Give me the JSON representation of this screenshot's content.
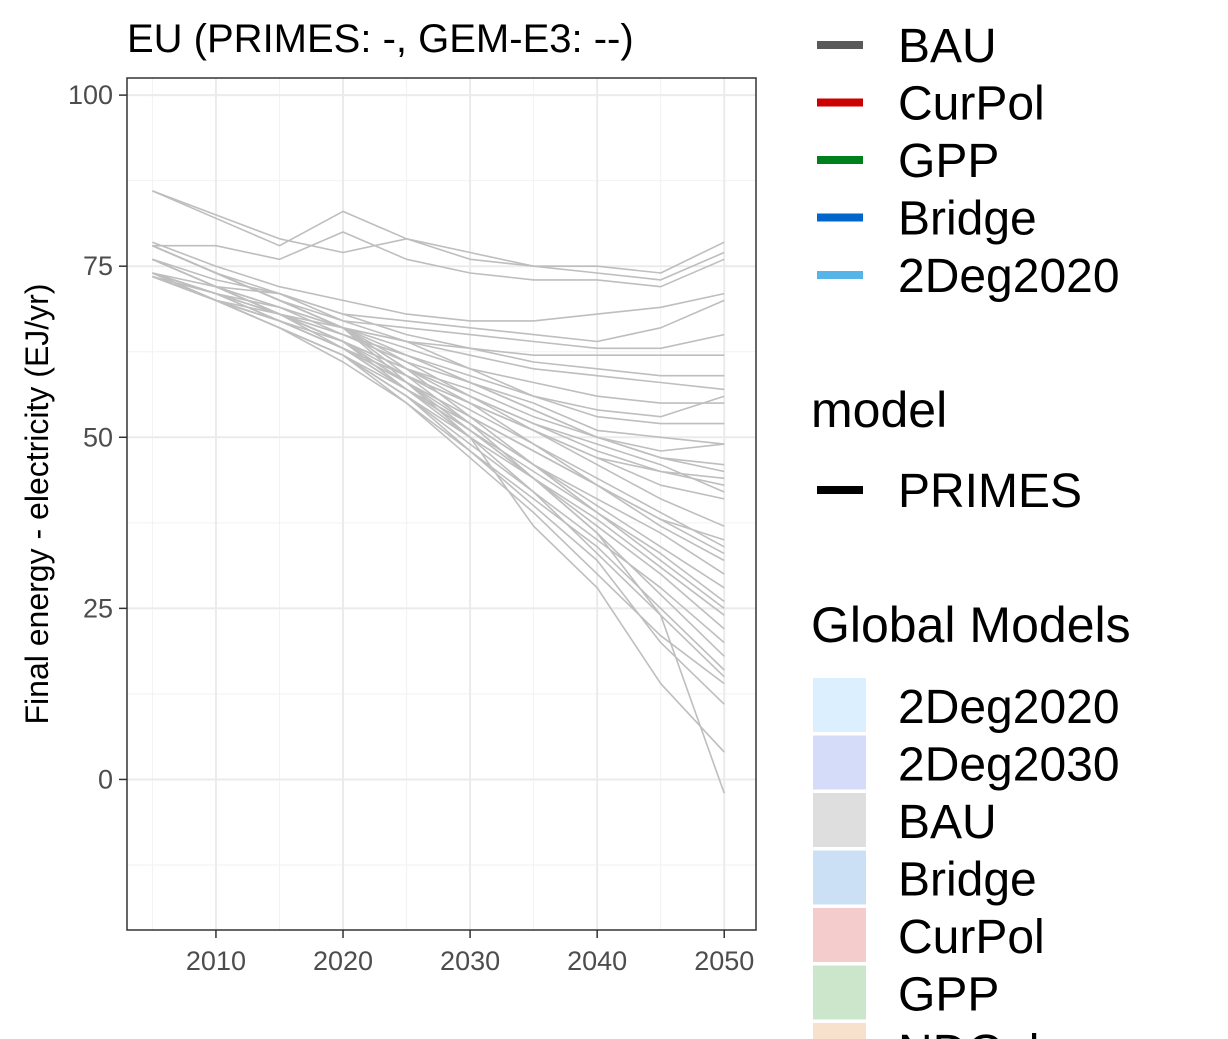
{
  "chart_data": {
    "type": "line",
    "title": "EU (PRIMES: -, GEM-E3: --)",
    "xlabel": "",
    "ylabel": "Final energy - electricity (EJ/yr)",
    "xlim": [
      2003,
      2052.5
    ],
    "ylim": [
      -22,
      102.5
    ],
    "x_ticks": [
      2010,
      2020,
      2030,
      2040,
      2050
    ],
    "y_ticks": [
      0,
      25,
      50,
      75,
      100
    ],
    "grid": true,
    "line_color": "#bebebe",
    "x": [
      2005,
      2010,
      2015,
      2020,
      2025,
      2030,
      2035,
      2040,
      2045,
      2050
    ],
    "series": [
      {
        "values": [
          86,
          82.5,
          79,
          77,
          79,
          76,
          75,
          75,
          74,
          78.5
        ]
      },
      {
        "values": [
          86,
          82,
          78,
          83,
          79,
          77,
          75,
          74,
          73,
          77
        ]
      },
      {
        "values": [
          78,
          78,
          76,
          80,
          76,
          74,
          73,
          73,
          72,
          76
        ]
      },
      {
        "values": [
          78.5,
          75,
          72,
          70,
          68,
          67,
          67,
          68,
          69,
          71
        ]
      },
      {
        "values": [
          76,
          73,
          71,
          68,
          67,
          66,
          65,
          64,
          66,
          70
        ]
      },
      {
        "values": [
          74,
          72,
          71,
          67,
          66,
          65,
          64,
          63,
          63,
          65
        ]
      },
      {
        "values": [
          73.5,
          71,
          68,
          66,
          64,
          63,
          62,
          62,
          62,
          62
        ]
      },
      {
        "values": [
          78,
          74,
          71,
          68,
          65,
          63,
          61,
          60,
          59,
          59
        ]
      },
      {
        "values": [
          74,
          71,
          69,
          66,
          64,
          62,
          60,
          59,
          58,
          57
        ]
      },
      {
        "values": [
          76,
          72,
          69,
          66,
          63,
          60,
          58,
          56,
          55,
          55
        ]
      },
      {
        "values": [
          73.5,
          70,
          68,
          65,
          62,
          59,
          56,
          54,
          53,
          56
        ]
      },
      {
        "values": [
          78,
          74,
          70,
          67,
          64,
          60,
          56,
          53,
          52,
          52
        ]
      },
      {
        "values": [
          74,
          71,
          68,
          65,
          61,
          58,
          55,
          51,
          50,
          49
        ]
      },
      {
        "values": [
          73.5,
          70,
          67,
          64,
          60,
          57,
          53,
          50,
          48,
          49
        ]
      },
      {
        "values": [
          76,
          72,
          69,
          65,
          62,
          58,
          54,
          50,
          47,
          46
        ]
      },
      {
        "values": [
          78,
          74,
          70,
          66,
          62,
          58,
          54,
          50,
          47,
          45
        ]
      },
      {
        "values": [
          74,
          71,
          68,
          64,
          60,
          56,
          52,
          48,
          45,
          44
        ]
      },
      {
        "values": [
          73.5,
          70,
          67,
          63,
          59,
          55,
          51,
          47,
          45,
          43
        ]
      },
      {
        "values": [
          76,
          72,
          68,
          64,
          60,
          56,
          52,
          49,
          46,
          42
        ]
      },
      {
        "values": [
          74,
          70,
          67,
          63,
          59,
          55,
          51,
          47,
          43,
          41
        ]
      },
      {
        "values": [
          78,
          74,
          70,
          66,
          61,
          56,
          51,
          46,
          41,
          37
        ]
      },
      {
        "values": [
          73.5,
          70,
          67,
          63,
          58,
          53,
          48,
          43,
          38,
          35
        ]
      },
      {
        "values": [
          76,
          72,
          68,
          64,
          59,
          54,
          49,
          44,
          39,
          34
        ]
      },
      {
        "values": [
          74,
          71,
          67,
          63,
          58,
          53,
          48,
          43,
          38,
          33
        ]
      },
      {
        "values": [
          78,
          74,
          70,
          66,
          60,
          55,
          49,
          43,
          37,
          32
        ]
      },
      {
        "values": [
          73.5,
          70,
          66,
          62,
          57,
          52,
          46,
          41,
          36,
          30
        ]
      },
      {
        "values": [
          76,
          72,
          68,
          64,
          58,
          52,
          46,
          40,
          34,
          28
        ]
      },
      {
        "values": [
          74,
          71,
          67,
          63,
          57,
          51,
          45,
          39,
          33,
          26
        ]
      },
      {
        "values": [
          78,
          74,
          70,
          66,
          60,
          53,
          46,
          39,
          32,
          25
        ]
      },
      {
        "values": [
          73.5,
          70,
          66,
          62,
          56,
          50,
          44,
          38,
          31,
          24
        ]
      },
      {
        "values": [
          76,
          72,
          68,
          63,
          57,
          51,
          44,
          37,
          30,
          22
        ]
      },
      {
        "values": [
          74,
          70,
          66,
          62,
          56,
          49,
          42,
          35,
          28,
          20
        ]
      },
      {
        "values": [
          78,
          74,
          70,
          66,
          59,
          52,
          44,
          36,
          27,
          18
        ]
      },
      {
        "values": [
          73.5,
          70,
          66,
          61,
          55,
          48,
          41,
          34,
          25,
          16
        ]
      },
      {
        "values": [
          76,
          72,
          68,
          64,
          57,
          50,
          42,
          33,
          24,
          15
        ]
      },
      {
        "values": [
          74,
          70,
          66,
          62,
          55,
          47,
          39,
          30,
          21,
          14
        ]
      },
      {
        "values": [
          78,
          74,
          70,
          66,
          58,
          50,
          37,
          28,
          14,
          4
        ]
      },
      {
        "values": [
          73.5,
          70,
          66,
          62,
          56,
          48,
          40,
          32,
          20,
          11
        ]
      },
      {
        "values": [
          76,
          72,
          68,
          64,
          58,
          51,
          44,
          36,
          24,
          -2
        ]
      }
    ]
  },
  "legend": {
    "scenarios": [
      {
        "label": "BAU",
        "color": "#595959"
      },
      {
        "label": "CurPol",
        "color": "#cc0000"
      },
      {
        "label": "GPP",
        "color": "#00801a"
      },
      {
        "label": "Bridge",
        "color": "#0066cc"
      },
      {
        "label": "2Deg2020",
        "color": "#56b4e9"
      }
    ],
    "model_title": "model",
    "models": [
      {
        "label": "PRIMES",
        "color": "#000000"
      }
    ],
    "global_title": "Global Models",
    "global_models": [
      {
        "label": "2Deg2020",
        "color": "#dcefff"
      },
      {
        "label": "2Deg2030",
        "color": "#d4dcf9"
      },
      {
        "label": "BAU",
        "color": "#dedede"
      },
      {
        "label": "Bridge",
        "color": "#cce0f5"
      },
      {
        "label": "CurPol",
        "color": "#f5cccc"
      },
      {
        "label": "GPP",
        "color": "#cce6cc"
      },
      {
        "label": "NDCplus",
        "color": "#f7e0cc"
      }
    ]
  }
}
